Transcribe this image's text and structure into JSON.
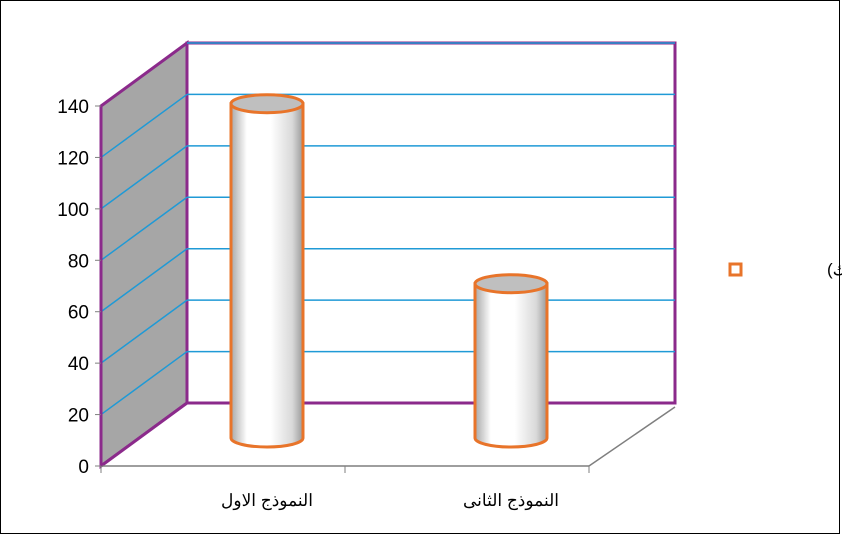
{
  "colors": {
    "wall_border": "#8b2a8b",
    "side_wall_fill": "#a6a6a6",
    "gridline": "#1f9ad6",
    "cylinder_outline": "#e8742a",
    "cylinder_top": "#bfbfbf",
    "floor_line": "#7f7f7f"
  },
  "chart_data": {
    "type": "bar",
    "categories": [
      "النموذج الاول",
      "النموذج الثانى"
    ],
    "series": [
      {
        "name": "قيمة (ك)",
        "values": [
          130,
          60
        ]
      }
    ],
    "yticks": [
      "0",
      "20",
      "40",
      "60",
      "80",
      "100",
      "120",
      "140"
    ],
    "ylim": [
      0,
      140
    ],
    "grid": true,
    "legend_position": "right",
    "style": "3d-cylinder"
  }
}
